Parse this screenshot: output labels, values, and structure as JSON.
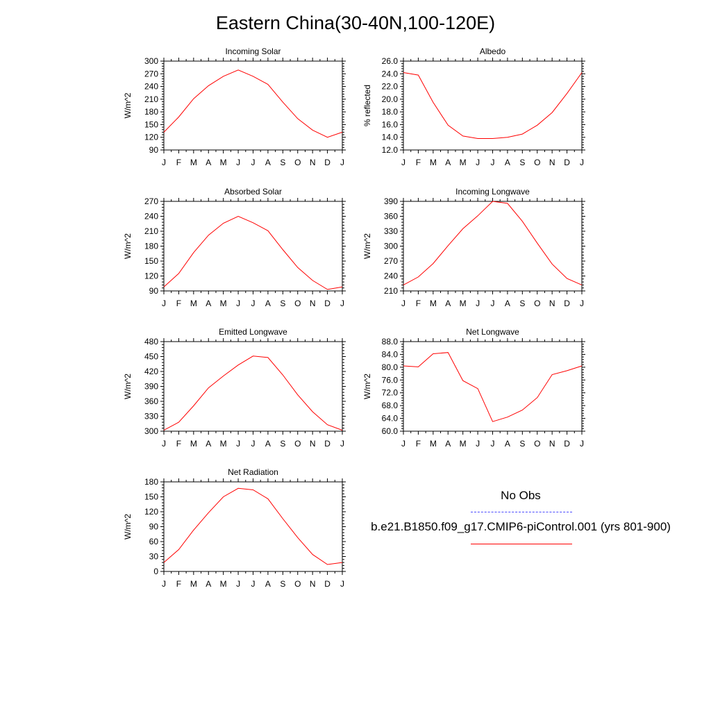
{
  "title": "Eastern China(30-40N,100-120E)",
  "legend": {
    "title": "No Obs",
    "obs_color": "#4a4aff",
    "model_label": "b.e21.B1850.f09_g17.CMIP6-piControl.001 (yrs 801-900)",
    "model_color": "#ff0000"
  },
  "chart_data": [
    {
      "type": "line",
      "title": "Incoming Solar",
      "ylabel": "W/m^2",
      "categories": [
        "J",
        "F",
        "M",
        "A",
        "M",
        "J",
        "J",
        "A",
        "S",
        "O",
        "N",
        "D",
        "J"
      ],
      "ylim": [
        90,
        300
      ],
      "yticks": [
        "90",
        "120",
        "150",
        "180",
        "210",
        "240",
        "270",
        "300"
      ],
      "series": [
        {
          "name": "b.e21.B1850.f09_g17.CMIP6-piControl.001 (yrs 801-900)",
          "values": [
            132,
            168,
            211,
            242,
            264,
            279,
            264,
            245,
            203,
            164,
            137,
            120,
            132
          ]
        }
      ]
    },
    {
      "type": "line",
      "title": "Albedo",
      "ylabel": "% reflected",
      "categories": [
        "J",
        "F",
        "M",
        "A",
        "M",
        "J",
        "J",
        "A",
        "S",
        "O",
        "N",
        "D",
        "J"
      ],
      "ylim": [
        12.0,
        26.0
      ],
      "yticks": [
        "12.0",
        "14.0",
        "16.0",
        "18.0",
        "20.0",
        "22.0",
        "24.0",
        "26.0"
      ],
      "series": [
        {
          "name": "b.e21.B1850.f09_g17.CMIP6-piControl.001 (yrs 801-900)",
          "values": [
            24.2,
            23.8,
            19.5,
            15.9,
            14.2,
            13.8,
            13.8,
            14.0,
            14.5,
            15.9,
            17.9,
            20.9,
            24.2
          ]
        }
      ]
    },
    {
      "type": "line",
      "title": "Absorbed Solar",
      "ylabel": "W/m^2",
      "categories": [
        "J",
        "F",
        "M",
        "A",
        "M",
        "J",
        "J",
        "A",
        "S",
        "O",
        "N",
        "D",
        "J"
      ],
      "ylim": [
        90,
        270
      ],
      "yticks": [
        "90",
        "120",
        "150",
        "180",
        "210",
        "240",
        "270"
      ],
      "series": [
        {
          "name": "b.e21.B1850.f09_g17.CMIP6-piControl.001 (yrs 801-900)",
          "values": [
            98,
            125,
            167,
            202,
            226,
            240,
            227,
            211,
            173,
            137,
            111,
            93,
            98
          ]
        }
      ]
    },
    {
      "type": "line",
      "title": "Incoming Longwave",
      "ylabel": "W/m^2",
      "categories": [
        "J",
        "F",
        "M",
        "A",
        "M",
        "J",
        "J",
        "A",
        "S",
        "O",
        "N",
        "D",
        "J"
      ],
      "ylim": [
        210,
        390
      ],
      "yticks": [
        "210",
        "240",
        "270",
        "300",
        "330",
        "360",
        "390"
      ],
      "series": [
        {
          "name": "b.e21.B1850.f09_g17.CMIP6-piControl.001 (yrs 801-900)",
          "values": [
            222,
            238,
            265,
            301,
            335,
            361,
            390,
            386,
            350,
            306,
            264,
            235,
            222
          ]
        }
      ]
    },
    {
      "type": "line",
      "title": "Emitted Longwave",
      "ylabel": "W/m^2",
      "categories": [
        "J",
        "F",
        "M",
        "A",
        "M",
        "J",
        "J",
        "A",
        "S",
        "O",
        "N",
        "D",
        "J"
      ],
      "ylim": [
        300,
        480
      ],
      "yticks": [
        "300",
        "330",
        "360",
        "390",
        "420",
        "450",
        "480"
      ],
      "series": [
        {
          "name": "b.e21.B1850.f09_g17.CMIP6-piControl.001 (yrs 801-900)",
          "values": [
            302,
            318,
            351,
            387,
            411,
            433,
            451,
            448,
            413,
            373,
            339,
            313,
            302
          ]
        }
      ]
    },
    {
      "type": "line",
      "title": "Net Longwave",
      "ylabel": "W/m^2",
      "categories": [
        "J",
        "F",
        "M",
        "A",
        "M",
        "J",
        "J",
        "A",
        "S",
        "O",
        "N",
        "D",
        "J"
      ],
      "ylim": [
        60.0,
        88.0
      ],
      "yticks": [
        "60.0",
        "64.0",
        "68.0",
        "72.0",
        "76.0",
        "80.0",
        "84.0",
        "88.0"
      ],
      "series": [
        {
          "name": "b.e21.B1850.f09_g17.CMIP6-piControl.001 (yrs 801-900)",
          "values": [
            80.4,
            80.1,
            84.2,
            84.6,
            75.8,
            73.3,
            63.0,
            64.4,
            66.6,
            70.5,
            77.7,
            78.9,
            80.4
          ]
        }
      ]
    },
    {
      "type": "line",
      "title": "Net Radiation",
      "ylabel": "W/m^2",
      "categories": [
        "J",
        "F",
        "M",
        "A",
        "M",
        "J",
        "J",
        "A",
        "S",
        "O",
        "N",
        "D",
        "J"
      ],
      "ylim": [
        0,
        180
      ],
      "yticks": [
        "0",
        "30",
        "60",
        "90",
        "120",
        "150",
        "180"
      ],
      "series": [
        {
          "name": "b.e21.B1850.f09_g17.CMIP6-piControl.001 (yrs 801-900)",
          "values": [
            18,
            44,
            83,
            118,
            150,
            167,
            164,
            146,
            106,
            68,
            34,
            14,
            18
          ]
        }
      ]
    }
  ]
}
